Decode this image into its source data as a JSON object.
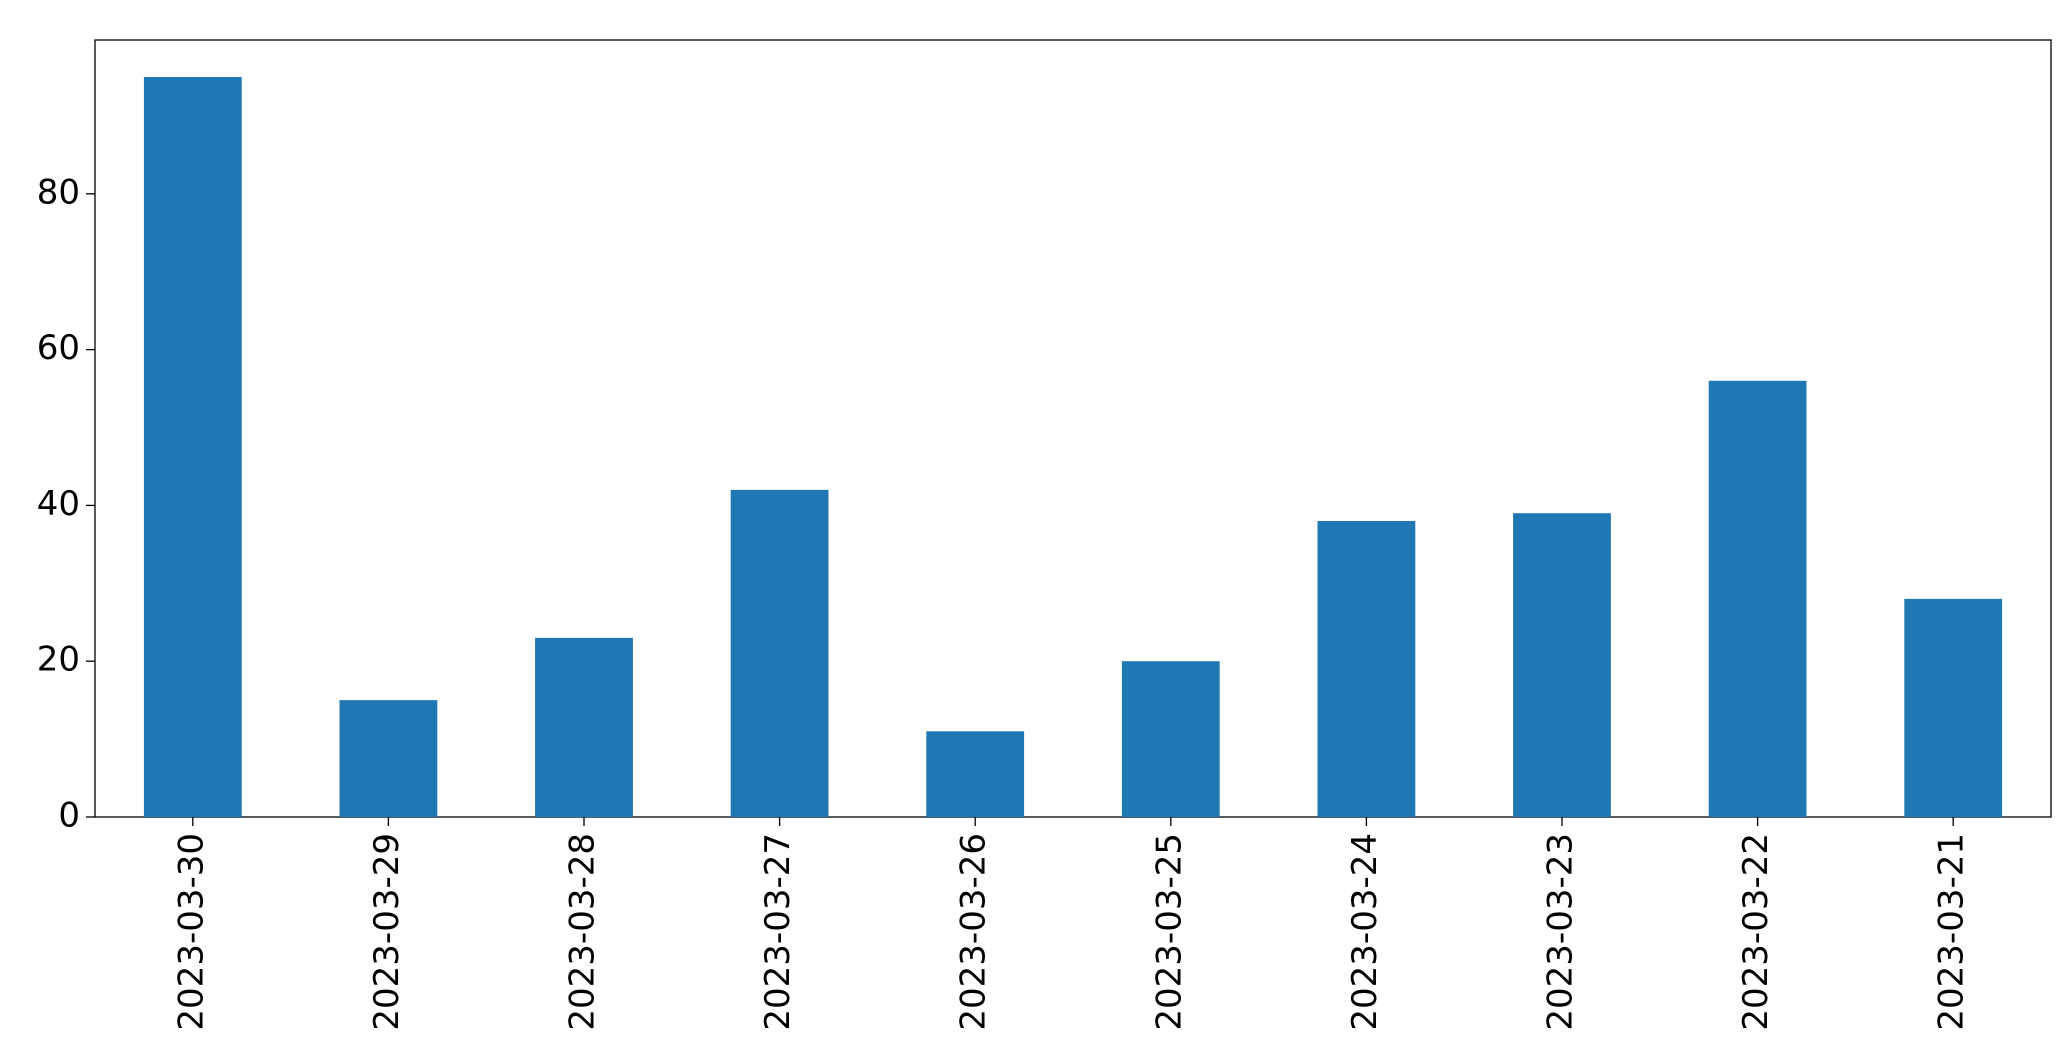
{
  "chart_data": {
    "type": "bar",
    "categories": [
      "2023-03-30",
      "2023-03-29",
      "2023-03-28",
      "2023-03-27",
      "2023-03-26",
      "2023-03-25",
      "2023-03-24",
      "2023-03-23",
      "2023-03-22",
      "2023-03-21"
    ],
    "values": [
      95,
      15,
      23,
      42,
      11,
      20,
      38,
      39,
      56,
      28
    ],
    "color": "#1f77b4",
    "ylim": [
      0,
      99.75
    ],
    "yticks": [
      0,
      20,
      40,
      60,
      80
    ],
    "grid": false
  }
}
